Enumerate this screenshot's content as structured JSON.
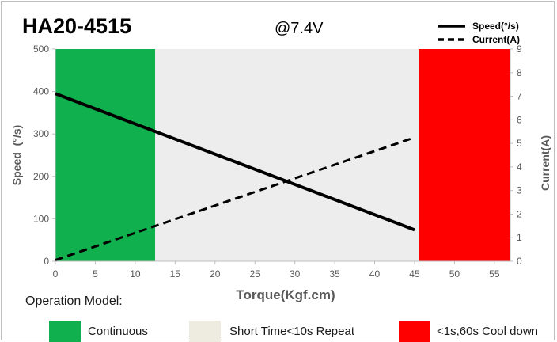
{
  "chart_data": {
    "type": "line",
    "title": "HA20-4515",
    "subtitle": "@7.4V",
    "xlabel": "Torque(Kgf.cm)",
    "ylabel": "Speed  (°/s)",
    "y2label": "Current(A)",
    "xlim": [
      0,
      57
    ],
    "ylim": [
      0,
      500
    ],
    "y2lim": [
      0,
      9
    ],
    "x_ticks": [
      "0",
      "5",
      "10",
      "15",
      "20",
      "25",
      "30",
      "35",
      "40",
      "45",
      "50",
      "55"
    ],
    "y_ticks": [
      "0",
      "100",
      "200",
      "300",
      "400",
      "500"
    ],
    "y2_ticks": [
      "0",
      "1",
      "2",
      "3",
      "4",
      "5",
      "6",
      "7",
      "8",
      "9"
    ],
    "regions": [
      {
        "label": "Continuous",
        "x_start": 0,
        "x_end": 12.5,
        "color": "#10b04e"
      },
      {
        "label": "Short Time<10s Repeat",
        "x_start": 12.5,
        "x_end": 45.5,
        "color": "#ededed"
      },
      {
        "label": "<1s,60s Cool down",
        "x_start": 45.5,
        "x_end": 57,
        "color": "#ff0000"
      }
    ],
    "series": [
      {
        "name": "Speed(°/s)",
        "axis": "left",
        "style": "solid",
        "color": "#000000",
        "x": [
          0,
          45
        ],
        "y": [
          395,
          74
        ]
      },
      {
        "name": "Current(A)",
        "axis": "right",
        "style": "dashed",
        "color": "#000000",
        "x": [
          0,
          45
        ],
        "y": [
          0.05,
          5.25
        ]
      }
    ],
    "legend_position": "top-right",
    "grid": false
  },
  "operation": {
    "title": "Operation Model:",
    "items": [
      {
        "label": "Continuous",
        "color": "#10b04e"
      },
      {
        "label": "Short Time<10s Repeat",
        "color": "#eeebe1"
      },
      {
        "label": "<1s,60s Cool down",
        "color": "#ff0000"
      }
    ]
  }
}
